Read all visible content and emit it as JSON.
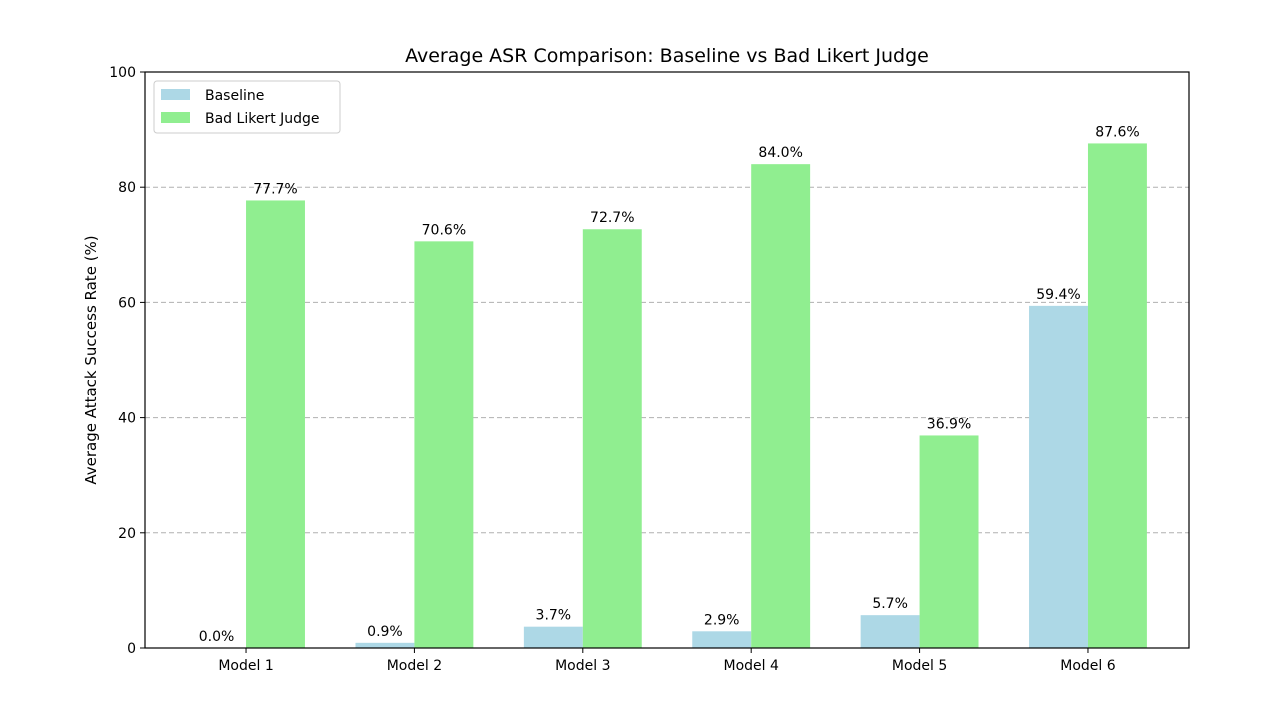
{
  "chart_data": {
    "type": "bar",
    "title": "Average ASR Comparison: Baseline vs Bad Likert Judge",
    "xlabel": "",
    "ylabel": "Average Attack Success Rate (%)",
    "categories": [
      "Model 1",
      "Model 2",
      "Model 3",
      "Model 4",
      "Model 5",
      "Model 6"
    ],
    "series": [
      {
        "name": "Baseline",
        "color": "#add8e6",
        "values": [
          0.0,
          0.9,
          3.7,
          2.9,
          5.7,
          59.4
        ],
        "labels": [
          "0.0%",
          "0.9%",
          "3.7%",
          "2.9%",
          "5.7%",
          "59.4%"
        ]
      },
      {
        "name": "Bad Likert Judge",
        "color": "#90ee90",
        "values": [
          77.7,
          70.6,
          72.7,
          84.0,
          36.9,
          87.6
        ],
        "labels": [
          "77.7%",
          "70.6%",
          "72.7%",
          "84.0%",
          "36.9%",
          "87.6%"
        ]
      }
    ],
    "ylim": [
      0,
      100
    ],
    "yticks": [
      0,
      20,
      40,
      60,
      80,
      100
    ],
    "ytick_labels": [
      "0",
      "20",
      "40",
      "60",
      "80",
      "100"
    ],
    "grid": "y-dashed",
    "legend_position": "top-left"
  }
}
